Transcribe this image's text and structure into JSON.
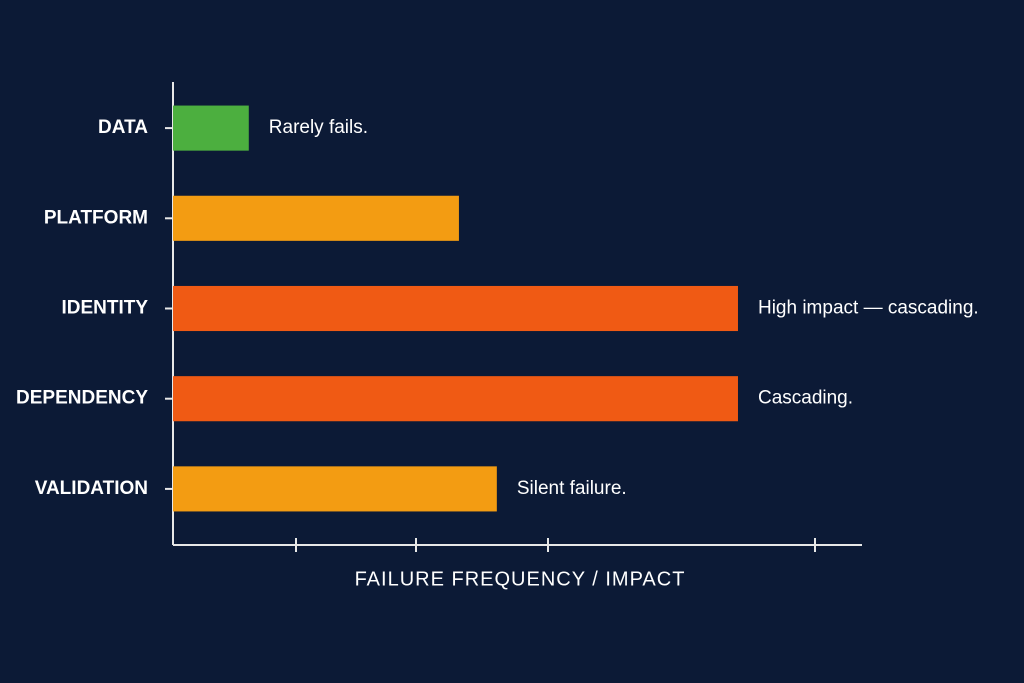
{
  "chart_data": {
    "type": "bar",
    "orientation": "horizontal",
    "x_label": "FAILURE FREQUENCY / IMPACT",
    "categories": [
      "DATA",
      "PLATFORM",
      "IDENTITY",
      "DEPENDENCY",
      "VALIDATION"
    ],
    "values": [
      11,
      41.5,
      82,
      82,
      47
    ],
    "colors": [
      "#4caf3f",
      "#f39c12",
      "#f05a14",
      "#f05a14",
      "#f39c12"
    ],
    "annotations": [
      "Rarely fails.",
      null,
      "High impact — cascading.",
      "Cascading.",
      "Silent failure."
    ],
    "xlim": [
      0,
      100
    ]
  }
}
